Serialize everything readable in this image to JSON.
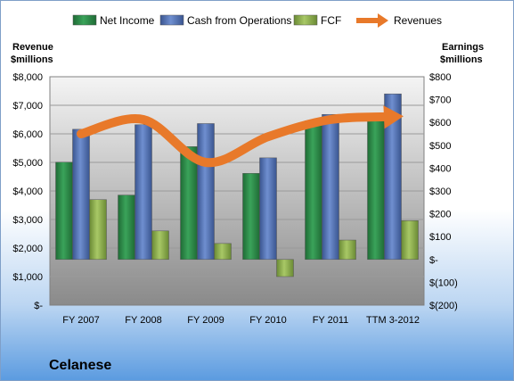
{
  "company": "Celanese",
  "chart_data": {
    "type": "bar",
    "categories": [
      "FY 2007",
      "FY 2008",
      "FY 2009",
      "FY 2010",
      "FY 2011",
      "TTM 3-2012"
    ],
    "left_axis": {
      "label_line1": "Revenue",
      "label_line2": "$millions",
      "range": [
        0,
        8000
      ],
      "ticks": [
        "$-",
        "$1,000",
        "$2,000",
        "$3,000",
        "$4,000",
        "$5,000",
        "$6,000",
        "$7,000",
        "$8,000"
      ]
    },
    "right_axis": {
      "label_line1": "Earnings",
      "label_line2": "$millions",
      "range": [
        -200,
        800
      ],
      "ticks": [
        "$(200)",
        "$(100)",
        "$-",
        "$100",
        "$200",
        "$300",
        "$400",
        "$500",
        "$600",
        "$700",
        "$800"
      ]
    },
    "series": [
      {
        "name": "Net Income",
        "axis": "right",
        "color": "#2e8b4a",
        "values": [
          426,
          282,
          494,
          377,
          607,
          623
        ]
      },
      {
        "name": "Cash from Operations",
        "axis": "right",
        "color": "#4f6fb0",
        "values": [
          570,
          590,
          595,
          445,
          635,
          725
        ]
      },
      {
        "name": "FCF",
        "axis": "right",
        "color": "#8fae4e",
        "values": [
          262,
          125,
          70,
          -75,
          85,
          170
        ]
      },
      {
        "name": "Revenues",
        "axis": "left",
        "color": "#e8792a",
        "values": [
          6000,
          6500,
          5000,
          5900,
          6500,
          6600
        ]
      }
    ],
    "legend_position": "top"
  }
}
